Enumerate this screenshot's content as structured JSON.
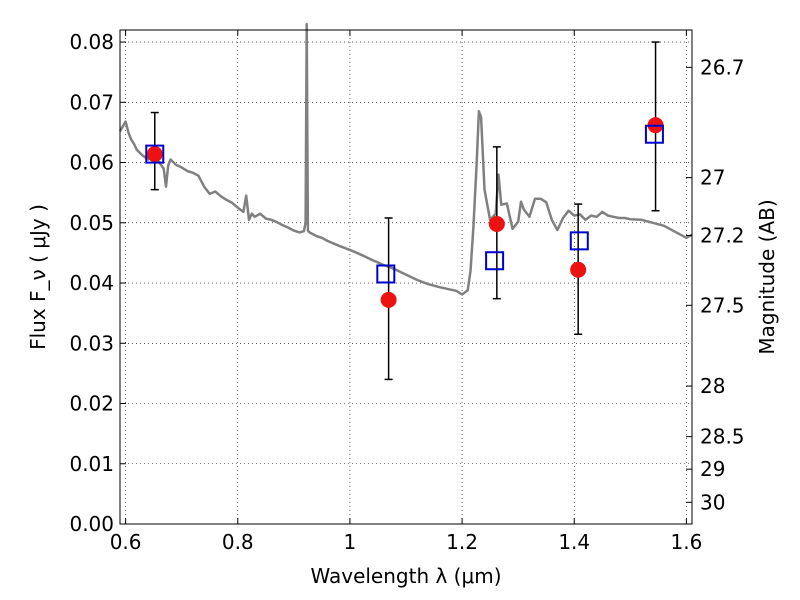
{
  "chart_data": {
    "type": "scatter",
    "xlabel": "Wavelength  λ (μm)",
    "ylabel": "Flux  F_ν  ( μJy )",
    "ylabel_right": "Magnitude (AB)",
    "xlim": [
      0.59,
      1.61
    ],
    "ylim": [
      0.0,
      0.082
    ],
    "grid": true,
    "x_ticks": [
      0.6,
      0.8,
      1.0,
      1.2,
      1.4,
      1.6
    ],
    "x_tick_labels": [
      "0.6",
      "0.8",
      "1",
      "1.2",
      "1.4",
      "1.6"
    ],
    "y_ticks": [
      0.0,
      0.01,
      0.02,
      0.03,
      0.04,
      0.05,
      0.06,
      0.07,
      0.08
    ],
    "y_tick_labels": [
      "0.00",
      "0.01",
      "0.02",
      "0.03",
      "0.04",
      "0.05",
      "0.06",
      "0.07",
      "0.08"
    ],
    "right_axis_ticks": [
      {
        "label": "26.7",
        "flux": 0.0758
      },
      {
        "label": "27",
        "flux": 0.0575
      },
      {
        "label": "27.2",
        "flux": 0.0479
      },
      {
        "label": "27.5",
        "flux": 0.0363
      },
      {
        "label": "28",
        "flux": 0.0229
      },
      {
        "label": "28.5",
        "flux": 0.0145
      },
      {
        "label": "29",
        "flux": 0.0091
      },
      {
        "label": "30",
        "flux": 0.0036
      }
    ],
    "series": [
      {
        "kind": "line",
        "color": "#808080",
        "x": [
          0.59,
          0.6,
          0.605,
          0.61,
          0.615,
          0.62,
          0.63,
          0.64,
          0.65,
          0.66,
          0.668,
          0.672,
          0.676,
          0.68,
          0.69,
          0.7,
          0.71,
          0.72,
          0.73,
          0.74,
          0.75,
          0.76,
          0.77,
          0.78,
          0.79,
          0.8,
          0.81,
          0.815,
          0.82,
          0.825,
          0.83,
          0.84,
          0.85,
          0.86,
          0.87,
          0.88,
          0.89,
          0.9,
          0.91,
          0.918,
          0.921,
          0.923,
          0.925,
          0.928,
          0.93,
          0.94,
          0.95,
          0.96,
          0.98,
          1.0,
          1.02,
          1.04,
          1.06,
          1.08,
          1.1,
          1.12,
          1.14,
          1.16,
          1.18,
          1.19,
          1.2,
          1.21,
          1.215,
          1.22,
          1.226,
          1.23,
          1.234,
          1.24,
          1.25,
          1.26,
          1.265,
          1.27,
          1.28,
          1.29,
          1.3,
          1.305,
          1.31,
          1.32,
          1.33,
          1.34,
          1.35,
          1.36,
          1.37,
          1.38,
          1.39,
          1.4,
          1.41,
          1.42,
          1.43,
          1.44,
          1.45,
          1.46,
          1.47,
          1.48,
          1.49,
          1.5,
          1.52,
          1.54,
          1.56,
          1.58,
          1.59,
          1.6,
          1.61
        ],
        "y": [
          0.0652,
          0.0668,
          0.065,
          0.0638,
          0.0631,
          0.0621,
          0.0612,
          0.0605,
          0.0615,
          0.06,
          0.059,
          0.056,
          0.0595,
          0.0605,
          0.0596,
          0.0592,
          0.0586,
          0.0583,
          0.0578,
          0.056,
          0.0548,
          0.0552,
          0.0544,
          0.0538,
          0.0533,
          0.0525,
          0.0518,
          0.0545,
          0.0505,
          0.0515,
          0.051,
          0.0515,
          0.0507,
          0.0505,
          0.0501,
          0.0496,
          0.0492,
          0.0487,
          0.0484,
          0.0486,
          0.05,
          0.083,
          0.0487,
          0.0484,
          0.0483,
          0.0478,
          0.0475,
          0.047,
          0.0462,
          0.0455,
          0.0447,
          0.0438,
          0.043,
          0.0423,
          0.0414,
          0.0405,
          0.0398,
          0.0393,
          0.0389,
          0.0387,
          0.0381,
          0.0388,
          0.042,
          0.049,
          0.06,
          0.0685,
          0.0675,
          0.0555,
          0.0505,
          0.0515,
          0.058,
          0.053,
          0.0532,
          0.049,
          0.0502,
          0.0535,
          0.0522,
          0.051,
          0.054,
          0.054,
          0.0534,
          0.0505,
          0.0488,
          0.0508,
          0.052,
          0.0512,
          0.0514,
          0.0505,
          0.0512,
          0.051,
          0.0518,
          0.0512,
          0.051,
          0.0508,
          0.0508,
          0.0506,
          0.0505,
          0.05,
          0.0495,
          0.0485,
          0.048,
          0.0475,
          0.048
        ]
      },
      {
        "kind": "errorbar",
        "color": "#000000",
        "x": [
          0.652,
          1.069,
          1.262,
          1.407,
          1.545
        ],
        "y": [
          0.0619,
          0.0374,
          0.05,
          0.0423,
          0.066
        ],
        "yerr_low": [
          0.0064,
          0.0134,
          0.0126,
          0.0108,
          0.014
        ],
        "yerr_high": [
          0.0064,
          0.0134,
          0.0126,
          0.0108,
          0.014
        ]
      },
      {
        "kind": "marker",
        "marker": "circle",
        "color": "#ee1111",
        "x": [
          0.652,
          1.069,
          1.262,
          1.407,
          1.545
        ],
        "y": [
          0.0614,
          0.0372,
          0.0498,
          0.0422,
          0.0662
        ]
      },
      {
        "kind": "marker",
        "marker": "square",
        "color": "#0000cc",
        "x": [
          0.652,
          1.064,
          1.258,
          1.409,
          1.543
        ],
        "y": [
          0.0614,
          0.0415,
          0.0437,
          0.047,
          0.0647
        ]
      }
    ]
  }
}
